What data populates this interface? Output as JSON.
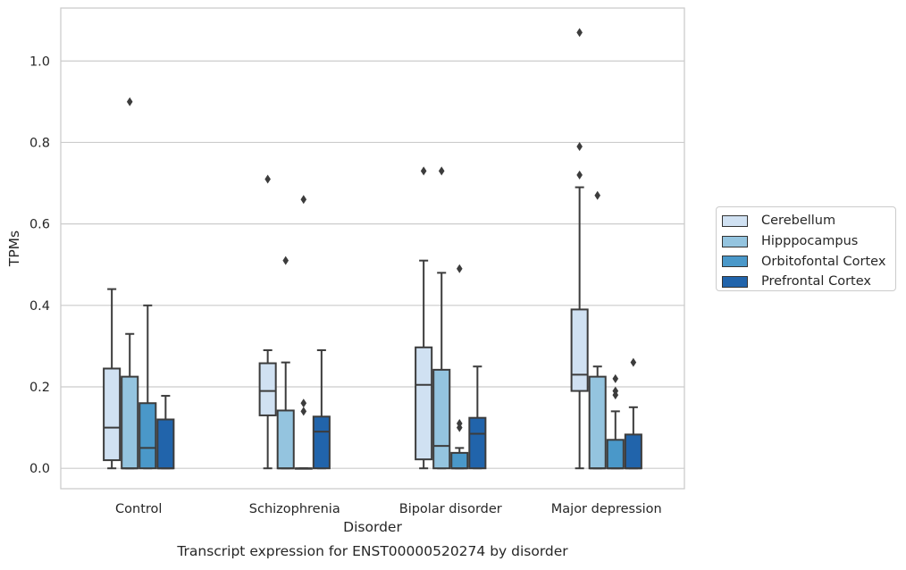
{
  "chart_data": {
    "type": "box",
    "title": "Transcript expression for ENST00000520274 by disorder",
    "xlabel": "Disorder",
    "ylabel": "TPMs",
    "ylim": [
      -0.05,
      1.13
    ],
    "yticks": [
      "0.0",
      "0.2",
      "0.4",
      "0.6",
      "0.8",
      "1.0"
    ],
    "grid": "horizontal",
    "legend_position": "right",
    "categories": [
      "Control",
      "Schizophrenia",
      "Bipolar disorder",
      "Major depression"
    ],
    "series": [
      {
        "name": "Cerebellum",
        "color": "#d0e1f2",
        "boxes": [
          {
            "whislo": 0.0,
            "q1": 0.02,
            "med": 0.1,
            "q3": 0.245,
            "whishi": 0.44,
            "fliers": []
          },
          {
            "whislo": 0.0,
            "q1": 0.13,
            "med": 0.19,
            "q3": 0.258,
            "whishi": 0.29,
            "fliers": [
              0.71
            ]
          },
          {
            "whislo": 0.0,
            "q1": 0.022,
            "med": 0.205,
            "q3": 0.297,
            "whishi": 0.51,
            "fliers": [
              0.73
            ]
          },
          {
            "whislo": 0.0,
            "q1": 0.19,
            "med": 0.23,
            "q3": 0.39,
            "whishi": 0.69,
            "fliers": [
              0.72,
              0.79,
              1.07
            ]
          }
        ]
      },
      {
        "name": "Hipppocampus",
        "color": "#94c4df",
        "boxes": [
          {
            "whislo": 0.0,
            "q1": 0.0,
            "med": 0.0,
            "q3": 0.225,
            "whishi": 0.33,
            "fliers": [
              0.9
            ]
          },
          {
            "whislo": 0.0,
            "q1": 0.0,
            "med": 0.0,
            "q3": 0.142,
            "whishi": 0.26,
            "fliers": [
              0.51
            ]
          },
          {
            "whislo": 0.0,
            "q1": 0.0,
            "med": 0.055,
            "q3": 0.242,
            "whishi": 0.48,
            "fliers": [
              0.73
            ]
          },
          {
            "whislo": 0.0,
            "q1": 0.0,
            "med": 0.0,
            "q3": 0.225,
            "whishi": 0.25,
            "fliers": [
              0.67
            ]
          }
        ]
      },
      {
        "name": "Orbitofontal Cortex",
        "color": "#4a98c9",
        "boxes": [
          {
            "whislo": 0.0,
            "q1": 0.0,
            "med": 0.05,
            "q3": 0.16,
            "whishi": 0.4,
            "fliers": []
          },
          {
            "whislo": 0.0,
            "q1": 0.0,
            "med": 0.0,
            "q3": 0.0,
            "whishi": 0.0,
            "fliers": [
              0.14,
              0.16,
              0.66
            ]
          },
          {
            "whislo": 0.0,
            "q1": 0.0,
            "med": 0.0,
            "q3": 0.038,
            "whishi": 0.05,
            "fliers": [
              0.1,
              0.11,
              0.49
            ]
          },
          {
            "whislo": 0.0,
            "q1": 0.0,
            "med": 0.0,
            "q3": 0.07,
            "whishi": 0.14,
            "fliers": [
              0.18,
              0.19,
              0.22
            ]
          }
        ]
      },
      {
        "name": "Prefrontal Cortex",
        "color": "#2164ab",
        "boxes": [
          {
            "whislo": 0.0,
            "q1": 0.0,
            "med": 0.0,
            "q3": 0.12,
            "whishi": 0.178,
            "fliers": []
          },
          {
            "whislo": 0.0,
            "q1": 0.0,
            "med": 0.09,
            "q3": 0.127,
            "whishi": 0.29,
            "fliers": []
          },
          {
            "whislo": 0.0,
            "q1": 0.0,
            "med": 0.085,
            "q3": 0.124,
            "whishi": 0.25,
            "fliers": []
          },
          {
            "whislo": 0.0,
            "q1": 0.0,
            "med": 0.0,
            "q3": 0.083,
            "whishi": 0.15,
            "fliers": [
              0.26
            ]
          }
        ]
      }
    ]
  }
}
